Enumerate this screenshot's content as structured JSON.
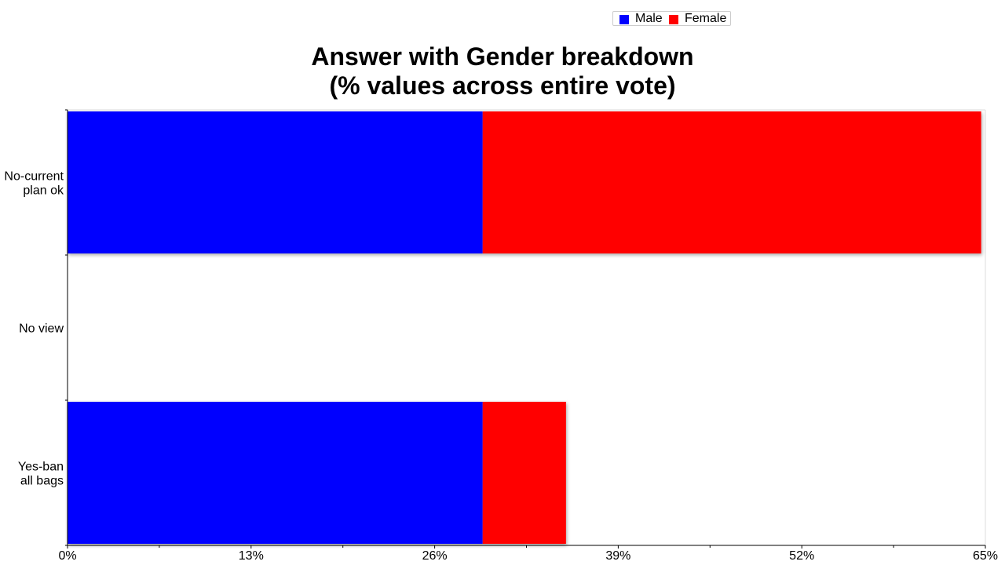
{
  "chart_data": {
    "type": "bar",
    "orientation": "horizontal",
    "stacked": true,
    "title": [
      "Answer with Gender breakdown",
      "(% values across entire vote)"
    ],
    "categories": [
      [
        "No-current",
        "plan ok"
      ],
      [
        "No view"
      ],
      [
        "Yes-ban",
        "all bags"
      ]
    ],
    "series": [
      {
        "name": "Male",
        "color": "#0000ff",
        "values": [
          29.4,
          0,
          29.4
        ]
      },
      {
        "name": "Female",
        "color": "#ff0000",
        "values": [
          35.3,
          0,
          5.9
        ]
      }
    ],
    "x_ticks": [
      "0%",
      "13%",
      "26%",
      "39%",
      "52%",
      "65%"
    ],
    "xlim": [
      0,
      65
    ],
    "grid": false,
    "legend_position": "top-right"
  }
}
